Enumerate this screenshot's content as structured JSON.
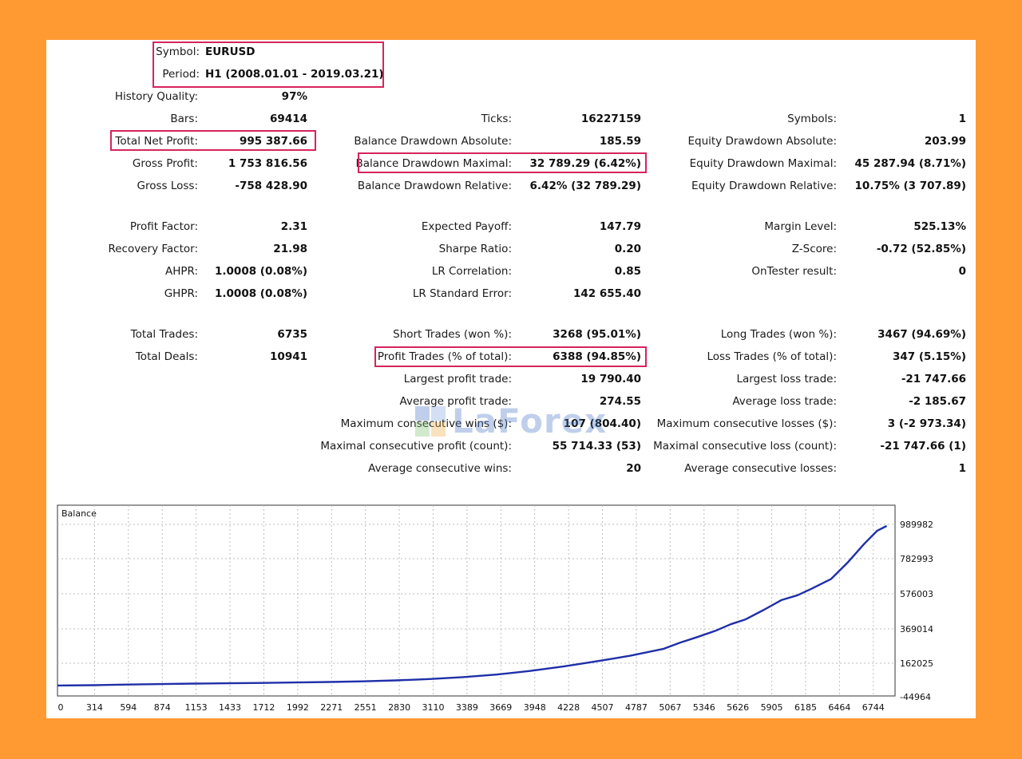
{
  "header": {
    "symbol_label": "Symbol:",
    "symbol_value": "EURUSD",
    "period_label": "Period:",
    "period_value": "H1 (2008.01.01 - 2019.03.21)"
  },
  "rows": [
    {
      "y": 0,
      "cells": [
        {
          "label": "History Quality:",
          "value": "97%"
        }
      ]
    },
    {
      "cells": [
        {
          "label": "Bars:",
          "value": "69414"
        },
        {
          "label": "Ticks:",
          "value": "16227159"
        },
        {
          "label": "Symbols:",
          "value": "1"
        }
      ]
    },
    {
      "cells": [
        {
          "label": "Total Net Profit:",
          "value": "995 387.66"
        },
        {
          "label": "Balance Drawdown Absolute:",
          "value": "185.59"
        },
        {
          "label": "Equity Drawdown Absolute:",
          "value": "203.99"
        }
      ]
    },
    {
      "cells": [
        {
          "label": "Gross Profit:",
          "value": "1 753 816.56"
        },
        {
          "label": "Balance Drawdown Maximal:",
          "value": "32 789.29 (6.42%)"
        },
        {
          "label": "Equity Drawdown Maximal:",
          "value": "45 287.94 (8.71%)"
        }
      ]
    },
    {
      "cells": [
        {
          "label": "Gross Loss:",
          "value": "-758 428.90"
        },
        {
          "label": "Balance Drawdown Relative:",
          "value": "6.42% (32 789.29)"
        },
        {
          "label": "Equity Drawdown Relative:",
          "value": "10.75% (3 707.89)"
        }
      ]
    },
    {
      "cells": [
        {
          "label": "Profit Factor:",
          "value": "2.31"
        },
        {
          "label": "Expected Payoff:",
          "value": "147.79"
        },
        {
          "label": "Margin Level:",
          "value": "525.13%"
        }
      ]
    },
    {
      "cells": [
        {
          "label": "Recovery Factor:",
          "value": "21.98"
        },
        {
          "label": "Sharpe Ratio:",
          "value": "0.20"
        },
        {
          "label": "Z-Score:",
          "value": "-0.72 (52.85%)"
        }
      ]
    },
    {
      "cells": [
        {
          "label": "AHPR:",
          "value": "1.0008 (0.08%)"
        },
        {
          "label": "LR Correlation:",
          "value": "0.85"
        },
        {
          "label": "OnTester result:",
          "value": "0"
        }
      ]
    },
    {
      "cells": [
        {
          "label": "GHPR:",
          "value": "1.0008 (0.08%)"
        },
        {
          "label": "LR Standard Error:",
          "value": "142 655.40"
        }
      ]
    },
    {
      "cells": [
        {
          "label": "Total Trades:",
          "value": "6735"
        },
        {
          "label": "Short Trades (won %):",
          "value": "3268 (95.01%)"
        },
        {
          "label": "Long Trades (won %):",
          "value": "3467 (94.69%)"
        }
      ]
    },
    {
      "cells": [
        {
          "label": "Total Deals:",
          "value": "10941"
        },
        {
          "label": "Profit Trades (% of total):",
          "value": "6388 (94.85%)"
        },
        {
          "label": "Loss Trades (% of total):",
          "value": "347 (5.15%)"
        }
      ]
    },
    {
      "cells": [
        {
          "label": "",
          "value": ""
        },
        {
          "label": "Largest profit trade:",
          "value": "19 790.40"
        },
        {
          "label": "Largest loss trade:",
          "value": "-21 747.66"
        }
      ]
    },
    {
      "cells": [
        {
          "label": "",
          "value": ""
        },
        {
          "label": "Average profit trade:",
          "value": "274.55"
        },
        {
          "label": "Average loss trade:",
          "value": "-2 185.67"
        }
      ]
    },
    {
      "cells": [
        {
          "label": "",
          "value": ""
        },
        {
          "label": "Maximum consecutive wins ($):",
          "value": "107 (804.40)"
        },
        {
          "label": "Maximum consecutive losses ($):",
          "value": "3 (-2 973.34)"
        }
      ]
    },
    {
      "cells": [
        {
          "label": "",
          "value": ""
        },
        {
          "label": "Maximal consecutive profit (count):",
          "value": "55 714.33 (53)"
        },
        {
          "label": "Maximal consecutive loss (count):",
          "value": "-21 747.66 (1)"
        }
      ]
    },
    {
      "cells": [
        {
          "label": "",
          "value": ""
        },
        {
          "label": "Average consecutive wins:",
          "value": "20"
        },
        {
          "label": "Average consecutive losses:",
          "value": "1"
        }
      ]
    }
  ],
  "watermark": {
    "text": "LaForex"
  },
  "colors": {
    "background": "#FF9A33",
    "highlight": "#D6245C",
    "balance_line": "#1F2FA8"
  },
  "chart_data": {
    "type": "line",
    "title": "Balance",
    "x_ticks": [
      "0",
      "314",
      "594",
      "874",
      "1153",
      "1433",
      "1712",
      "1992",
      "2271",
      "2551",
      "2830",
      "3110",
      "3389",
      "3669",
      "3948",
      "4228",
      "4507",
      "4787",
      "5067",
      "5346",
      "5626",
      "5905",
      "6185",
      "6464",
      "6744"
    ],
    "y_ticks": [
      "989982",
      "782993",
      "576003",
      "369014",
      "162025",
      "-44964"
    ],
    "xlim": [
      0,
      7000
    ],
    "ylim": [
      -44964,
      989982
    ],
    "grid": true,
    "series": [
      {
        "x": [
          0,
          314,
          594,
          874,
          1153,
          1433,
          1712,
          1992,
          2271,
          2551,
          2830,
          3110,
          3389,
          3669,
          3948,
          4228,
          4507,
          4787,
          5067,
          5200,
          5346,
          5500,
          5626,
          5750,
          5905,
          6050,
          6185,
          6300,
          6464,
          6600,
          6744,
          6850,
          6930
        ],
        "y": [
          0,
          2000,
          6000,
          9000,
          12000,
          14000,
          16000,
          19000,
          22000,
          26000,
          32000,
          40000,
          52000,
          68000,
          90000,
          118000,
          150000,
          185000,
          228000,
          265000,
          300000,
          340000,
          380000,
          410000,
          470000,
          530000,
          560000,
          600000,
          660000,
          760000,
          880000,
          960000,
          990000
        ]
      }
    ]
  }
}
